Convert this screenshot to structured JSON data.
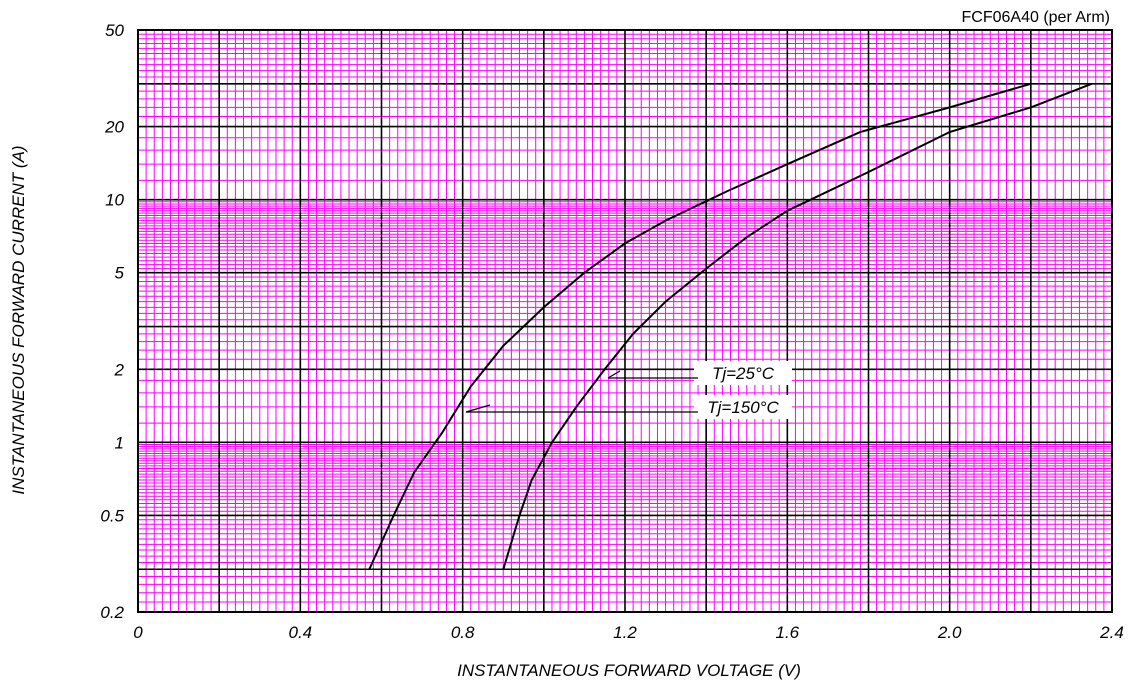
{
  "chart_data": {
    "type": "line",
    "title": "FCF06A40 (per Arm)",
    "xlabel": "INSTANTANEOUS FORWARD VOLTAGE (V)",
    "ylabel": "INSTANTANEOUS FORWARD CURRENT (A)",
    "x_scale": "linear",
    "y_scale": "log",
    "xlim": [
      0,
      2.4
    ],
    "ylim": [
      0.2,
      50
    ],
    "x_ticks": [
      "0",
      "0.4",
      "0.8",
      "1.2",
      "1.6",
      "2.0",
      "2.4"
    ],
    "y_ticks": [
      "50",
      "20",
      "10",
      "5",
      "2",
      "1",
      "0.5",
      "0.2"
    ],
    "grid": true,
    "colors": {
      "minor_grid": "#ff00ff",
      "major_grid": "#000000",
      "curves": "#000000"
    },
    "series": [
      {
        "name": "Tj=150°C",
        "x": [
          0.57,
          0.63,
          0.68,
          0.75,
          0.82,
          0.9,
          1.0,
          1.1,
          1.2,
          1.3,
          1.45,
          1.6,
          1.78,
          2.0,
          2.2
        ],
        "y": [
          0.3,
          0.5,
          0.75,
          1.1,
          1.7,
          2.5,
          3.6,
          5.0,
          6.6,
          8.2,
          10.8,
          14.0,
          19.0,
          24.0,
          30.0
        ]
      },
      {
        "name": "Tj=25°C",
        "x": [
          0.9,
          0.94,
          0.97,
          1.02,
          1.08,
          1.15,
          1.22,
          1.3,
          1.4,
          1.5,
          1.6,
          1.8,
          2.0,
          2.2,
          2.35
        ],
        "y": [
          0.3,
          0.5,
          0.7,
          1.0,
          1.4,
          2.0,
          2.8,
          3.8,
          5.2,
          7.0,
          9.0,
          13.0,
          19.0,
          24.0,
          30.0
        ]
      }
    ],
    "annotations": [
      "Tj=25°C",
      "Tj=150°C"
    ]
  }
}
